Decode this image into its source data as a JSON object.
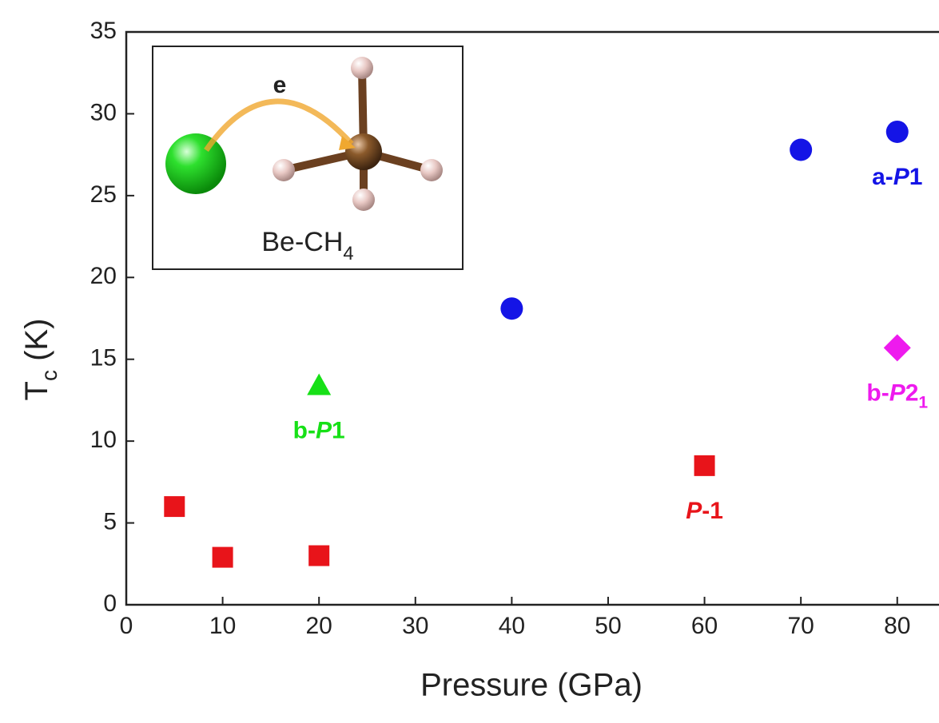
{
  "chart_data": {
    "type": "scatter",
    "x_label": "Pressure (GPa)",
    "y_label": [
      {
        "text": "T"
      },
      {
        "text": "c",
        "style": "sub"
      },
      {
        "text": " (K)"
      }
    ],
    "xlim": [
      0,
      84
    ],
    "xticks": [
      0,
      10,
      20,
      30,
      40,
      50,
      60,
      70,
      80
    ],
    "ylim": [
      0,
      35
    ],
    "yticks": [
      0,
      5,
      10,
      15,
      20,
      25,
      30,
      35
    ],
    "series": [
      {
        "marker": "square",
        "color": "#e8141a",
        "x": [
          5,
          10,
          20,
          60
        ],
        "values": [
          6,
          2.9,
          3,
          8.5
        ],
        "point_labels": [
          null,
          null,
          null,
          [
            {
              "text": "P",
              "style": "italic"
            },
            {
              "text": "-1"
            }
          ]
        ]
      },
      {
        "marker": "triangle",
        "color": "#17e017",
        "x": [
          20
        ],
        "values": [
          13.4
        ],
        "point_labels": [
          [
            {
              "text": "b-"
            },
            {
              "text": "P",
              "style": "italic"
            },
            {
              "text": "1"
            }
          ]
        ]
      },
      {
        "marker": "circle",
        "color": "#1414e6",
        "x": [
          40,
          70,
          80
        ],
        "values": [
          18.1,
          27.8,
          28.9
        ],
        "point_labels": [
          null,
          null,
          [
            {
              "text": "a-"
            },
            {
              "text": "P",
              "style": "italic"
            },
            {
              "text": "1"
            }
          ]
        ]
      },
      {
        "marker": "diamond",
        "color": "#ee1aee",
        "x": [
          80
        ],
        "values": [
          15.7
        ],
        "point_labels": [
          [
            {
              "text": "b-"
            },
            {
              "text": "P",
              "style": "italic"
            },
            {
              "text": "2"
            },
            {
              "text": "1",
              "style": "sub"
            }
          ]
        ]
      }
    ],
    "inset": {
      "electron": "e",
      "formula": [
        {
          "text": "Be-CH"
        },
        {
          "text": "4",
          "style": "sub"
        }
      ]
    }
  }
}
